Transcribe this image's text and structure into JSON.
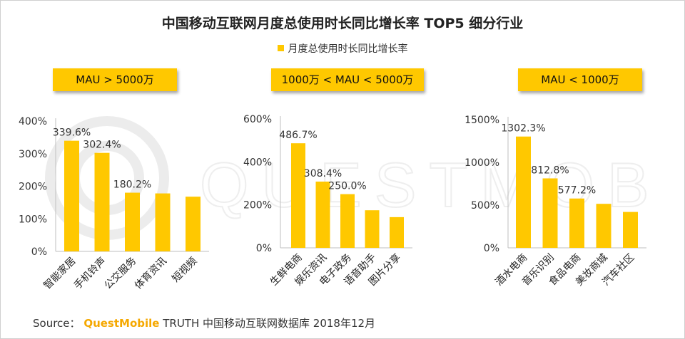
{
  "title": "中国移动互联网月度总使用时长同比增长率 TOP5 细分行业",
  "legend": "月度总使用时长同比增长率",
  "colors": {
    "bar": "#FFC800",
    "label_bg": "#FFC800"
  },
  "source": {
    "prefix": "Source：",
    "brand": "QuestMobile",
    "suffix": "TRUTH 中国移动互联网数据库 2018年12月"
  },
  "watermark": "QUESTMOBILE",
  "chart_data": [
    {
      "type": "bar",
      "group_label": "MAU > 5000万",
      "categories": [
        "智能家居",
        "手机铃声",
        "公交服务",
        "体育资讯",
        "短视频"
      ],
      "values": [
        339.6,
        302.4,
        180.2,
        178,
        168
      ],
      "data_labels": [
        "339.6%",
        "302.4%",
        "180.2%",
        "",
        ""
      ],
      "ylim": [
        0,
        400
      ],
      "yticks": [
        "0%",
        "100%",
        "200%",
        "300%",
        "400%"
      ],
      "grid": false
    },
    {
      "type": "bar",
      "group_label": "1000万 < MAU < 5000万",
      "categories": [
        "生鲜电商",
        "娱乐资讯",
        "电子政务",
        "语音助手",
        "图片分享"
      ],
      "values": [
        486.7,
        308.4,
        250.0,
        175,
        143
      ],
      "data_labels": [
        "486.7%",
        "308.4%",
        "250.0%",
        "",
        ""
      ],
      "ylim": [
        0,
        600
      ],
      "yticks": [
        "0%",
        "200%",
        "400%",
        "600%"
      ],
      "grid": false
    },
    {
      "type": "bar",
      "group_label": "MAU < 1000万",
      "categories": [
        "酒水电商",
        "音乐识别",
        "食品电商",
        "美妆商城",
        "汽车社区"
      ],
      "values": [
        1302.3,
        812.8,
        577.2,
        515,
        420
      ],
      "data_labels": [
        "1302.3%",
        "812.8%",
        "577.2%",
        "",
        ""
      ],
      "ylim": [
        0,
        1500
      ],
      "yticks": [
        "0%",
        "500%",
        "1000%",
        "1500%"
      ],
      "grid": false
    }
  ]
}
